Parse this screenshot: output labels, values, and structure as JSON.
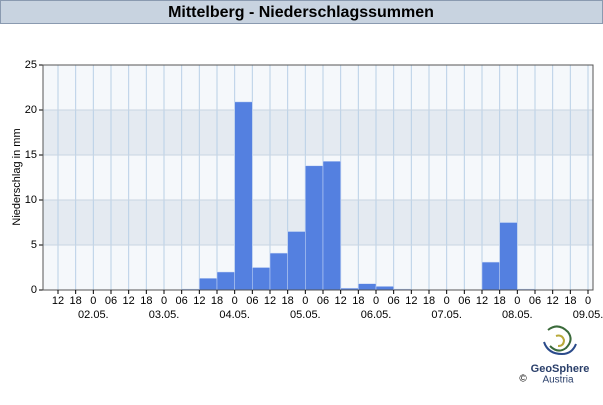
{
  "chart_data": {
    "type": "histogram",
    "title": "Mittelberg - Niederschlagssummen",
    "ylabel": "Niederschlag in mm",
    "bins": [
      "12",
      "18",
      "0",
      "06",
      "12",
      "18",
      "0",
      "06",
      "12",
      "18",
      "0",
      "06",
      "12",
      "18",
      "0",
      "06",
      "12",
      "18",
      "0",
      "06",
      "12",
      "18",
      "0",
      "06",
      "12",
      "18",
      "0",
      "06",
      "12",
      "18",
      "0"
    ],
    "dates": [
      "02.05.",
      "03.05.",
      "04.05.",
      "05.05.",
      "06.05.",
      "07.05.",
      "08.05.",
      "09.05."
    ],
    "values": [
      0,
      0,
      0,
      0,
      0,
      0,
      0,
      0.1,
      1.3,
      2.0,
      20.9,
      2.5,
      4.1,
      6.5,
      13.8,
      14.3,
      0.2,
      0.7,
      0.4,
      0.1,
      0,
      0,
      0,
      0,
      3.1,
      7.5,
      0.1,
      0,
      0,
      0
    ],
    "color": "#5480e0",
    "ylim": [
      0,
      25
    ],
    "yticks": [
      0,
      5,
      10,
      15,
      20,
      25
    ],
    "grid": true
  },
  "logo": {
    "name": "GeoSphere",
    "sub": "Austria",
    "copyright": "©"
  }
}
